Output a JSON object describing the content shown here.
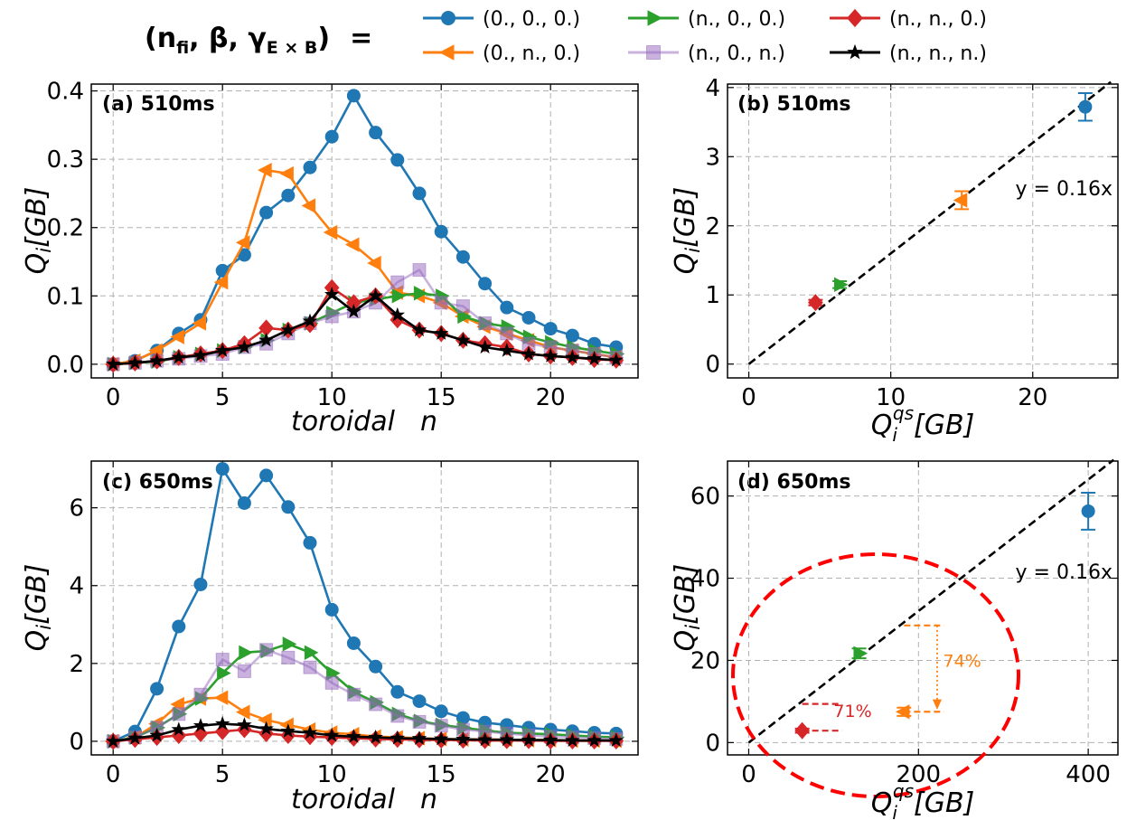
{
  "legend": {
    "title_parts": [
      "(n",
      "fi",
      ", β, γ",
      "E × B",
      ")",
      "="
    ],
    "entries": [
      {
        "label": "(0., 0., 0.)",
        "color": "#1f77b4",
        "marker": "circle",
        "alpha": 1
      },
      {
        "label": "(0., n., 0.)",
        "color": "#ff7f0e",
        "marker": "triangle-left",
        "alpha": 1
      },
      {
        "label": "(n., 0., 0.)",
        "color": "#2ca02c",
        "marker": "triangle-right",
        "alpha": 1
      },
      {
        "label": "(n., 0., n.)",
        "color": "#9467bd",
        "marker": "square",
        "alpha": 0.5
      },
      {
        "label": "(n., n., 0.)",
        "color": "#d62728",
        "marker": "diamond",
        "alpha": 1
      },
      {
        "label": "(n., n., n.)",
        "color": "#000000",
        "marker": "star",
        "alpha": 1
      }
    ]
  },
  "axis_text": {
    "toroidal_word": "toroidal",
    "toroidal_n": "n",
    "qi_base": "Q",
    "qi_sub": "i",
    "qi_unit": "[GB]",
    "qs_base": "Q",
    "qs_sub": "i",
    "qs_sup": "qs",
    "qs_unit": "[GB]"
  },
  "chart_data": [
    {
      "id": "a",
      "type": "line",
      "title": "(a) 510ms",
      "xlabel": "toroidal n",
      "ylabel": "Q_i[GB]",
      "xlim": [
        -1,
        24
      ],
      "ylim": [
        -0.02,
        0.41
      ],
      "xticks": [
        0,
        5,
        10,
        15,
        20
      ],
      "xtick_labels": [
        "0",
        "5",
        "10",
        "15",
        "20"
      ],
      "yticks": [
        0.0,
        0.1,
        0.2,
        0.3,
        0.4
      ],
      "ytick_labels": [
        "0.0",
        "0.1",
        "0.2",
        "0.3",
        "0.4"
      ],
      "grid": true,
      "x": [
        0,
        1,
        2,
        3,
        4,
        5,
        6,
        7,
        8,
        9,
        10,
        11,
        12,
        13,
        14,
        15,
        16,
        17,
        18,
        19,
        20,
        21,
        22,
        23
      ],
      "series": [
        {
          "name": "(0., 0., 0.)",
          "values": [
            0.0,
            0.005,
            0.02,
            0.045,
            0.065,
            0.137,
            0.16,
            0.222,
            0.247,
            0.288,
            0.333,
            0.393,
            0.339,
            0.299,
            0.25,
            0.194,
            0.157,
            0.118,
            0.083,
            0.068,
            0.052,
            0.042,
            0.03,
            0.025
          ]
        },
        {
          "name": "(0., n., 0.)",
          "values": [
            0.0,
            0.005,
            0.02,
            0.04,
            0.06,
            0.12,
            0.178,
            0.284,
            0.279,
            0.232,
            0.193,
            0.175,
            0.148,
            0.105,
            0.1,
            0.09,
            0.07,
            0.055,
            0.045,
            0.035,
            0.025,
            0.02,
            0.015,
            0.01
          ]
        },
        {
          "name": "(n., 0., 0.)",
          "values": [
            0.0,
            0.002,
            0.004,
            0.01,
            0.015,
            0.02,
            0.025,
            0.035,
            0.05,
            0.06,
            0.075,
            0.09,
            0.095,
            0.1,
            0.104,
            0.1,
            0.07,
            0.06,
            0.055,
            0.04,
            0.032,
            0.025,
            0.02,
            0.015
          ]
        },
        {
          "name": "(n., 0., n.)",
          "values": [
            0.0,
            0.002,
            0.005,
            0.008,
            0.012,
            0.015,
            0.025,
            0.03,
            0.045,
            0.06,
            0.07,
            0.077,
            0.09,
            0.12,
            0.138,
            0.09,
            0.085,
            0.06,
            0.045,
            0.03,
            0.025,
            0.02,
            0.015,
            0.01
          ]
        },
        {
          "name": "(n., n., 0.)",
          "values": [
            0.0,
            0.002,
            0.005,
            0.01,
            0.015,
            0.02,
            0.03,
            0.053,
            0.05,
            0.058,
            0.112,
            0.09,
            0.1,
            0.065,
            0.05,
            0.045,
            0.035,
            0.03,
            0.025,
            0.015,
            0.012,
            0.01,
            0.007,
            0.006
          ]
        },
        {
          "name": "(n., n., n.)",
          "values": [
            0.0,
            0.002,
            0.005,
            0.01,
            0.013,
            0.02,
            0.025,
            0.035,
            0.05,
            0.063,
            0.102,
            0.077,
            0.1,
            0.072,
            0.05,
            0.045,
            0.035,
            0.025,
            0.02,
            0.015,
            0.012,
            0.01,
            0.008,
            0.006
          ]
        }
      ]
    },
    {
      "id": "b",
      "type": "scatter",
      "title": "(b) 510ms",
      "xlabel": "Q_i^qs[GB]",
      "ylabel": "Q_i[GB]",
      "xlim": [
        -1.5,
        26
      ],
      "ylim": [
        -0.2,
        4.05
      ],
      "xticks": [
        0,
        10,
        20
      ],
      "xtick_labels": [
        "0",
        "10",
        "20"
      ],
      "yticks": [
        0,
        1,
        2,
        3,
        4
      ],
      "ytick_labels": [
        "0",
        "1",
        "2",
        "3",
        "4"
      ],
      "grid": true,
      "fit": {
        "label": "y = 0.16x",
        "slope": 0.16,
        "x_range": [
          0,
          25.5
        ]
      },
      "points": [
        {
          "series": "(0., 0., 0.)",
          "x": 23.7,
          "y": 3.72,
          "yerr": 0.2
        },
        {
          "series": "(0., n., 0.)",
          "x": 15.0,
          "y": 2.37,
          "yerr": 0.13
        },
        {
          "series": "(n., 0., 0.)",
          "x": 6.4,
          "y": 1.15,
          "yerr": 0.05
        },
        {
          "series": "(n., n., 0.)",
          "x": 4.7,
          "y": 0.89,
          "yerr": 0.04
        }
      ]
    },
    {
      "id": "c",
      "type": "line",
      "title": "(c) 650ms",
      "xlabel": "toroidal n",
      "ylabel": "Q_i[GB]",
      "xlim": [
        -1,
        24
      ],
      "ylim": [
        -0.35,
        7.2
      ],
      "xticks": [
        0,
        5,
        10,
        15,
        20
      ],
      "xtick_labels": [
        "0",
        "5",
        "10",
        "15",
        "20"
      ],
      "yticks": [
        0,
        2,
        4,
        6
      ],
      "ytick_labels": [
        "0",
        "2",
        "4",
        "6"
      ],
      "grid": true,
      "x": [
        0,
        1,
        2,
        3,
        4,
        5,
        6,
        7,
        8,
        9,
        10,
        11,
        12,
        13,
        14,
        15,
        16,
        17,
        18,
        19,
        20,
        21,
        22,
        23
      ],
      "series": [
        {
          "name": "(0., 0., 0.)",
          "values": [
            0.0,
            0.25,
            1.35,
            2.95,
            4.03,
            7.0,
            6.12,
            6.83,
            6.02,
            5.1,
            3.38,
            2.52,
            1.92,
            1.27,
            1.03,
            0.77,
            0.6,
            0.48,
            0.42,
            0.35,
            0.3,
            0.26,
            0.22,
            0.2
          ]
        },
        {
          "name": "(0., n., 0.)",
          "values": [
            0.0,
            0.1,
            0.45,
            0.95,
            1.1,
            1.12,
            0.75,
            0.55,
            0.42,
            0.3,
            0.22,
            0.18,
            0.12,
            0.1,
            0.08,
            0.06,
            0.05,
            0.05,
            0.04,
            0.03,
            0.03,
            0.02,
            0.02,
            0.02
          ]
        },
        {
          "name": "(n., 0., 0.)",
          "values": [
            0.0,
            0.1,
            0.35,
            0.7,
            1.1,
            1.75,
            2.28,
            2.32,
            2.5,
            2.28,
            1.75,
            1.27,
            1.0,
            0.7,
            0.52,
            0.42,
            0.35,
            0.28,
            0.22,
            0.2,
            0.18,
            0.15,
            0.12,
            0.1
          ]
        },
        {
          "name": "(n., 0., n.)",
          "values": [
            0.0,
            0.1,
            0.35,
            0.7,
            1.2,
            2.1,
            1.8,
            2.35,
            2.15,
            1.9,
            1.5,
            1.2,
            0.95,
            0.65,
            0.5,
            0.4,
            0.3,
            0.25,
            0.2,
            0.15,
            0.12,
            0.1,
            0.08,
            0.06
          ]
        },
        {
          "name": "(n., n., 0.)",
          "values": [
            0.0,
            0.05,
            0.1,
            0.15,
            0.2,
            0.25,
            0.3,
            0.2,
            0.15,
            0.12,
            0.1,
            0.08,
            0.06,
            0.05,
            0.04,
            0.03,
            0.03,
            0.02,
            0.02,
            0.02,
            0.01,
            0.01,
            0.01,
            0.01
          ]
        },
        {
          "name": "(n., n., n.)",
          "values": [
            0.0,
            0.08,
            0.15,
            0.3,
            0.4,
            0.45,
            0.42,
            0.32,
            0.26,
            0.22,
            0.15,
            0.12,
            0.1,
            0.08,
            0.07,
            0.06,
            0.05,
            0.04,
            0.04,
            0.03,
            0.03,
            0.02,
            0.02,
            0.02
          ]
        }
      ]
    },
    {
      "id": "d",
      "type": "scatter",
      "title": "(d) 650ms",
      "xlabel": "Q_i^qs[GB]",
      "ylabel": "Q_i[GB]",
      "xlim": [
        -25,
        435
      ],
      "ylim": [
        -3,
        68.5
      ],
      "xticks": [
        0,
        200,
        400
      ],
      "xtick_labels": [
        "0",
        "200",
        "400"
      ],
      "yticks": [
        0,
        20,
        40,
        60
      ],
      "ytick_labels": [
        "0",
        "20",
        "40",
        "60"
      ],
      "grid": true,
      "fit": {
        "label": "y = 0.16x",
        "slope": 0.16,
        "x_range": [
          0,
          430
        ]
      },
      "points": [
        {
          "series": "(0., 0., 0.)",
          "x": 400,
          "y": 56.3,
          "yerr": 4.5
        },
        {
          "series": "(0., n., 0.)",
          "x": 183,
          "y": 7.5,
          "yerr": 1.0
        },
        {
          "series": "(n., 0., 0.)",
          "x": 130,
          "y": 21.7,
          "yerr": 1.2
        },
        {
          "series": "(n., n., 0.)",
          "x": 63,
          "y": 2.9,
          "yerr": 0.5
        }
      ],
      "annotations": [
        {
          "text": "74%",
          "color": "#ff7f0e",
          "x": 229,
          "y": 18.5
        },
        {
          "text": "71%",
          "color": "#d62728",
          "x": 100,
          "y": 6.2
        }
      ]
    }
  ]
}
